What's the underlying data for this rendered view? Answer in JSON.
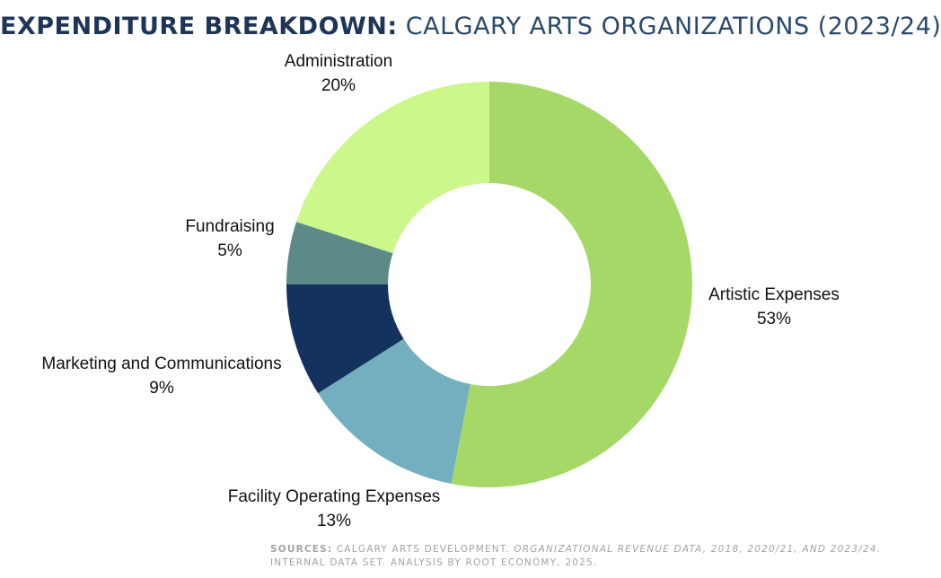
{
  "title": {
    "bold": "EXPENDITURE BREAKDOWN:",
    "light": "CALGARY ARTS ORGANIZATIONS (2023/24)"
  },
  "chart_data": {
    "type": "pie",
    "donut": true,
    "title": "EXPENDITURE BREAKDOWN: CALGARY ARTS ORGANIZATIONS (2023/24)",
    "slices": [
      {
        "label": "Artistic Expenses",
        "value": 53,
        "display": "53%",
        "color": "#a5d867"
      },
      {
        "label": "Facility Operating Expenses",
        "value": 13,
        "display": "13%",
        "color": "#73afbf"
      },
      {
        "label": "Marketing and Communications",
        "value": 9,
        "display": "9%",
        "color": "#13325e"
      },
      {
        "label": "Fundraising",
        "value": 5,
        "display": "5%",
        "color": "#5c8a88"
      },
      {
        "label": "Administration",
        "value": 20,
        "display": "20%",
        "color": "#cbf78b"
      }
    ]
  },
  "sources": {
    "head": "SOURCES:",
    "text1": "CALGARY ARTS DEVELOPMENT.",
    "italic": "ORGANIZATIONAL REVENUE DATA, 2018, 2020/21, AND 2023/24.",
    "text2": "INTERNAL DATA SET. ANALYSIS BY ROOT ECONOMY, 2025."
  }
}
